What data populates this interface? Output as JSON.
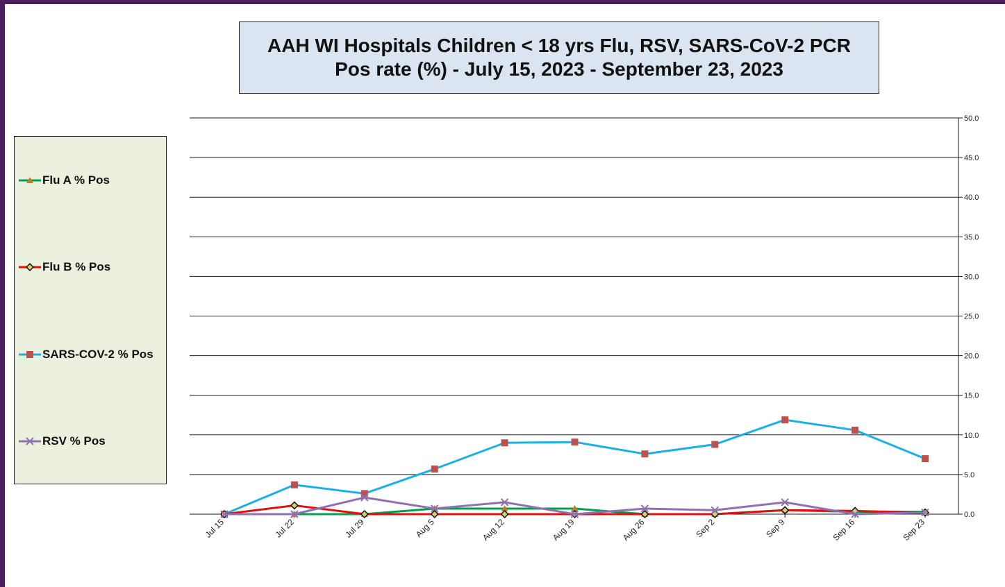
{
  "chart_data": {
    "type": "line",
    "title_line1": "AAH WI Hospitals Children < 18 yrs Flu, RSV, SARS-CoV-2 PCR",
    "title_line2": "Pos rate (%) - July 15, 2023 - September 23, 2023",
    "categories": [
      "Jul 15",
      "Jul 22",
      "Jul 29",
      "Aug 5",
      "Aug 12",
      "Aug 19",
      "Aug 26",
      "Sep 2",
      "Sep 9",
      "Sep 16",
      "Sep 23"
    ],
    "ylim": [
      0,
      50
    ],
    "yticks": [
      "0.0",
      "5.0",
      "10.0",
      "15.0",
      "20.0",
      "25.0",
      "30.0",
      "35.0",
      "40.0",
      "45.0",
      "50.0"
    ],
    "y_axis_side": "right",
    "grid": "horizontal",
    "legend_position": "left",
    "series": [
      {
        "name": "Flu A % Pos",
        "color": "#00a050",
        "marker": "triangle",
        "marker_color": "#c8781e",
        "values": [
          0.0,
          0.0,
          0.0,
          0.7,
          0.7,
          0.7,
          0.0,
          0.0,
          0.5,
          0.3,
          0.3
        ]
      },
      {
        "name": "Flu B % Pos",
        "color": "#e01010",
        "marker": "diamond",
        "marker_color": "#d8d070",
        "values": [
          0.0,
          1.1,
          0.0,
          0.0,
          0.0,
          0.0,
          0.0,
          0.0,
          0.5,
          0.4,
          0.2
        ]
      },
      {
        "name": "SARS-COV-2 % Pos",
        "color": "#1ab0e6",
        "marker": "square",
        "marker_color": "#c0504d",
        "values": [
          0.0,
          3.7,
          2.6,
          5.7,
          9.0,
          9.1,
          7.6,
          8.8,
          11.9,
          10.6,
          7.0
        ]
      },
      {
        "name": "RSV % Pos",
        "color": "#9070b0",
        "marker": "x",
        "marker_color": "#9070b0",
        "values": [
          0.0,
          0.0,
          2.1,
          0.7,
          1.5,
          0.0,
          0.7,
          0.5,
          1.5,
          0.0,
          0.2
        ]
      }
    ]
  }
}
